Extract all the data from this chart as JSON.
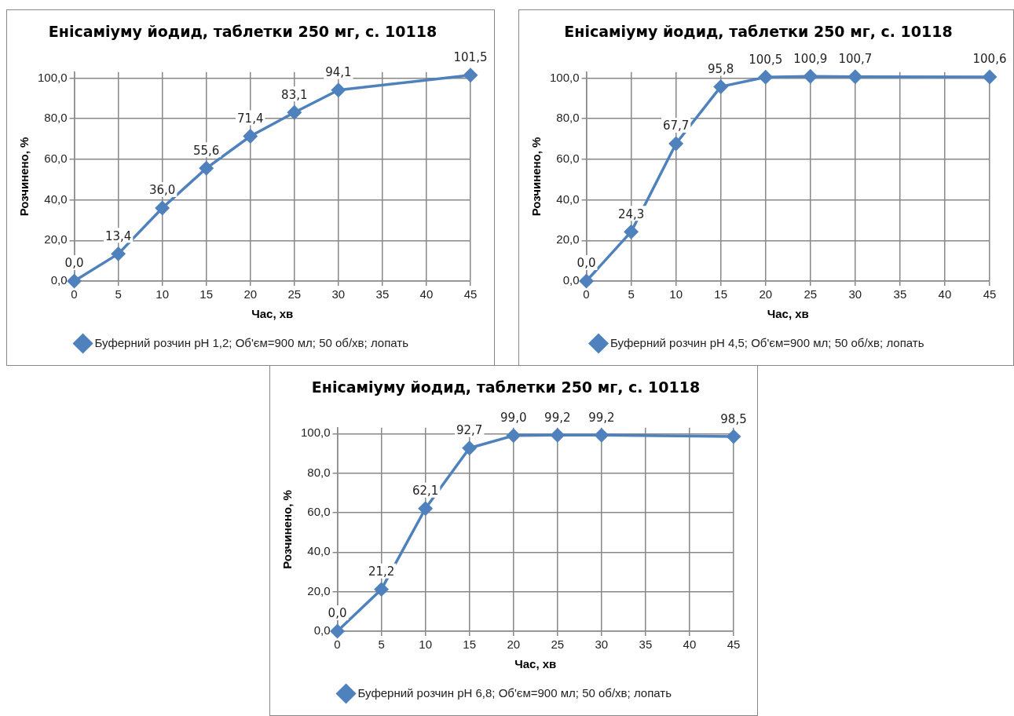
{
  "chart_data": [
    {
      "type": "line",
      "title": "Енісаміуму йодид, таблетки 250 мг, с. 10118",
      "xlabel": "Час, хв",
      "ylabel": "Розчинено, %",
      "x": [
        0,
        5,
        10,
        15,
        20,
        25,
        30,
        45
      ],
      "series": [
        {
          "name": "Буферний розчин рН 1,2; Об'єм=900 мл; 50 об/хв; лопать",
          "color": "#4f81bd",
          "values": [
            0.0,
            13.4,
            36.0,
            55.6,
            71.4,
            83.1,
            94.1,
            101.5
          ]
        }
      ],
      "xlim": [
        0,
        45
      ],
      "xticks": [
        0,
        5,
        10,
        15,
        20,
        25,
        30,
        35,
        40,
        45
      ],
      "ylim": [
        0,
        103
      ],
      "yticks": [
        {
          "value": 0,
          "label": "0,0"
        },
        {
          "value": 20,
          "label": "20,0"
        },
        {
          "value": 40,
          "label": "40,0"
        },
        {
          "value": 60,
          "label": "60,0"
        },
        {
          "value": 80,
          "label": "80,0"
        },
        {
          "value": 100,
          "label": "100,0"
        }
      ],
      "value_labels": [
        "0,0",
        "13,4",
        "36,0",
        "55,6",
        "71,4",
        "83,1",
        "94,1",
        "101,5"
      ],
      "grid": true,
      "legend": "bottom",
      "marker": "diamond",
      "line_style": "solid"
    },
    {
      "type": "line",
      "title": "Енісаміуму йодид, таблетки 250 мг, с. 10118",
      "xlabel": "Час, хв",
      "ylabel": "Розчинено, %",
      "x": [
        0,
        5,
        10,
        15,
        20,
        25,
        30,
        45
      ],
      "series": [
        {
          "name": "Буферний розчин рН 4,5; Об'єм=900 мл; 50 об/хв; лопать",
          "color": "#4f81bd",
          "values": [
            0.0,
            24.3,
            67.7,
            95.8,
            100.5,
            100.9,
            100.7,
            100.6
          ]
        }
      ],
      "xlim": [
        0,
        45
      ],
      "xticks": [
        0,
        5,
        10,
        15,
        20,
        25,
        30,
        35,
        40,
        45
      ],
      "ylim": [
        0,
        103
      ],
      "yticks": [
        {
          "value": 0,
          "label": "0,0"
        },
        {
          "value": 20,
          "label": "20,0"
        },
        {
          "value": 40,
          "label": "40,0"
        },
        {
          "value": 60,
          "label": "60,0"
        },
        {
          "value": 80,
          "label": "80,0"
        },
        {
          "value": 100,
          "label": "100,0"
        }
      ],
      "value_labels": [
        "0,0",
        "24,3",
        "67,7",
        "95,8",
        "100,5",
        "100,9",
        "100,7",
        "100,6"
      ],
      "grid": true,
      "legend": "bottom",
      "marker": "diamond",
      "line_style": "solid"
    },
    {
      "type": "line",
      "title": "Енісаміуму йодид, таблетки 250 мг, с. 10118",
      "xlabel": "Час, хв",
      "ylabel": "Розчинено, %",
      "x": [
        0,
        5,
        10,
        15,
        20,
        25,
        30,
        45
      ],
      "series": [
        {
          "name": "Буферний розчин рН 6,8; Об'єм=900 мл; 50 об/хв; лопать",
          "color": "#4f81bd",
          "values": [
            0.0,
            21.2,
            62.1,
            92.7,
            99.0,
            99.2,
            99.2,
            98.5
          ]
        }
      ],
      "xlim": [
        0,
        45
      ],
      "xticks": [
        0,
        5,
        10,
        15,
        20,
        25,
        30,
        35,
        40,
        45
      ],
      "ylim": [
        0,
        103
      ],
      "yticks": [
        {
          "value": 0,
          "label": "0,0"
        },
        {
          "value": 20,
          "label": "20,0"
        },
        {
          "value": 40,
          "label": "40,0"
        },
        {
          "value": 60,
          "label": "60,0"
        },
        {
          "value": 80,
          "label": "80,0"
        },
        {
          "value": 100,
          "label": "100,0"
        }
      ],
      "value_labels": [
        "0,0",
        "21,2",
        "62,1",
        "92,7",
        "99,0",
        "99,2",
        "99,2",
        "98,5"
      ],
      "grid": true,
      "legend": "bottom",
      "marker": "diamond",
      "line_style": "solid"
    }
  ]
}
